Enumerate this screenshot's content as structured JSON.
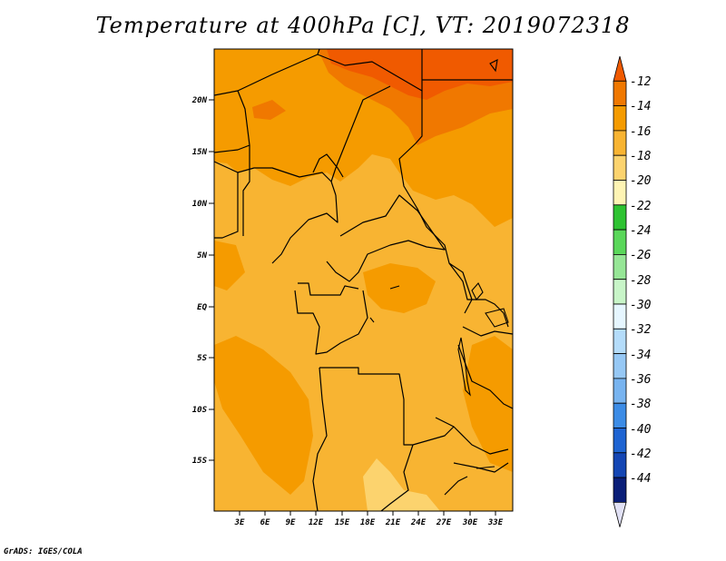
{
  "title": "Temperature at 400hPa [C], VT: 2019072318",
  "credit": "GrADS: IGES/COLA",
  "map": {
    "lat_labels": [
      "20N",
      "15N",
      "10N",
      "5N",
      "EQ",
      "5S",
      "10S",
      "15S"
    ],
    "lon_labels": [
      "3E",
      "6E",
      "9E",
      "12E",
      "15E",
      "18E",
      "21E",
      "24E",
      "27E",
      "30E",
      "33E"
    ]
  },
  "colorbar": {
    "levels": [
      "-12",
      "-14",
      "-16",
      "-18",
      "-20",
      "-22",
      "-24",
      "-26",
      "-28",
      "-30",
      "-32",
      "-34",
      "-36",
      "-38",
      "-40",
      "-42",
      "-44"
    ],
    "colors": [
      "#f05a00",
      "#f07800",
      "#f59b00",
      "#f8b432",
      "#fcd36e",
      "#fef4b4",
      "#2ec332",
      "#5ad75a",
      "#96e696",
      "#c8f5c8",
      "#e6f6ff",
      "#b4dcfa",
      "#96c8f5",
      "#78b4f0",
      "#3c8ce6",
      "#1e64d2",
      "#1446b4",
      "#0a1e78",
      "#e1e1f5"
    ]
  }
}
